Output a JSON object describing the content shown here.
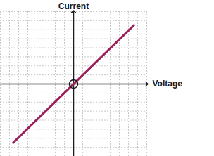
{
  "chart_data": {
    "type": "line",
    "x_label": "Voltage",
    "y_label": "Current",
    "x": [
      -6.6,
      6.6
    ],
    "values": [
      -6.5,
      6.5
    ],
    "color": "#9c1f5c",
    "xlim": [
      -8,
      8
    ],
    "ylim": [
      -8,
      8
    ],
    "xticks": [
      -8,
      -7,
      -6,
      -5,
      -4,
      -3,
      -2,
      -1,
      0,
      1,
      2,
      3,
      4,
      5,
      6,
      7,
      8
    ],
    "yticks": [
      -8,
      -7,
      -6,
      -5,
      -4,
      -3,
      -2,
      -1,
      0,
      1,
      2,
      3,
      4,
      5,
      6,
      7,
      8
    ],
    "grid": true,
    "tick_labels": false
  }
}
